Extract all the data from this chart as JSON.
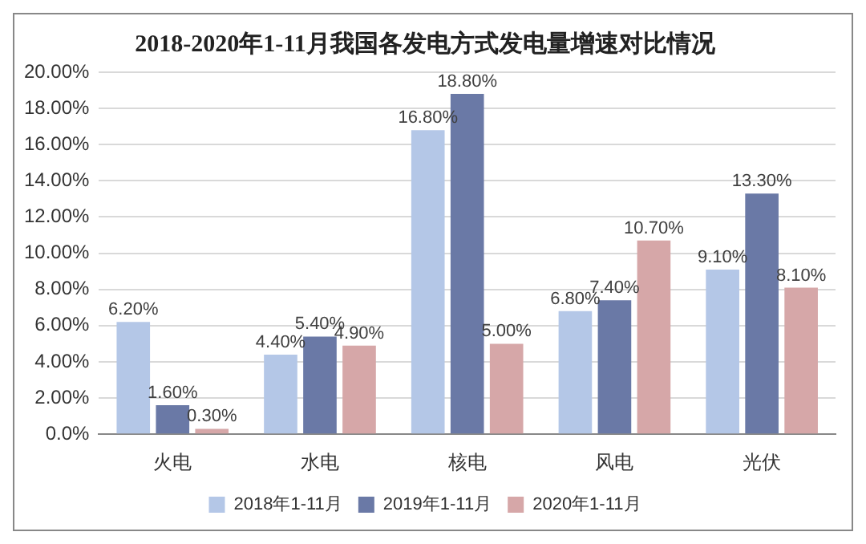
{
  "chart_data": {
    "type": "bar",
    "title": "2018-2020年1-11月我国各发电方式发电量增速对比情况",
    "categories": [
      "火电",
      "水电",
      "核电",
      "风电",
      "光伏"
    ],
    "series": [
      {
        "name": "2018年1-11月",
        "color": "#b4c7e7",
        "values": [
          6.2,
          4.4,
          16.8,
          6.8,
          9.1
        ],
        "value_labels": [
          "6.20%",
          "4.40%",
          "16.80%",
          "6.80%",
          "9.10%"
        ]
      },
      {
        "name": "2019年1-11月",
        "color": "#6a79a6",
        "values": [
          1.6,
          5.4,
          18.8,
          7.4,
          13.3
        ],
        "value_labels": [
          "1.60%",
          "5.40%",
          "18.80%",
          "7.40%",
          "13.30%"
        ]
      },
      {
        "name": "2020年1-11月",
        "color": "#d6a7a8",
        "values": [
          0.3,
          4.9,
          5.0,
          10.7,
          8.1
        ],
        "value_labels": [
          "0.30%",
          "4.90%",
          "5.00%",
          "10.70%",
          "8.10%"
        ]
      }
    ],
    "ylim": [
      0,
      20
    ],
    "yticks": [
      {
        "value": 0,
        "label": "0.0%"
      },
      {
        "value": 2,
        "label": "2.00%"
      },
      {
        "value": 4,
        "label": "4.00%"
      },
      {
        "value": 6,
        "label": "6.00%"
      },
      {
        "value": 8,
        "label": "8.00%"
      },
      {
        "value": 10,
        "label": "10.00%"
      },
      {
        "value": 12,
        "label": "12.00%"
      },
      {
        "value": 14,
        "label": "14.00%"
      },
      {
        "value": 16,
        "label": "16.00%"
      },
      {
        "value": 18,
        "label": "18.00%"
      },
      {
        "value": 20,
        "label": "20.00%"
      }
    ],
    "grid": "y",
    "legend": "bottom"
  }
}
